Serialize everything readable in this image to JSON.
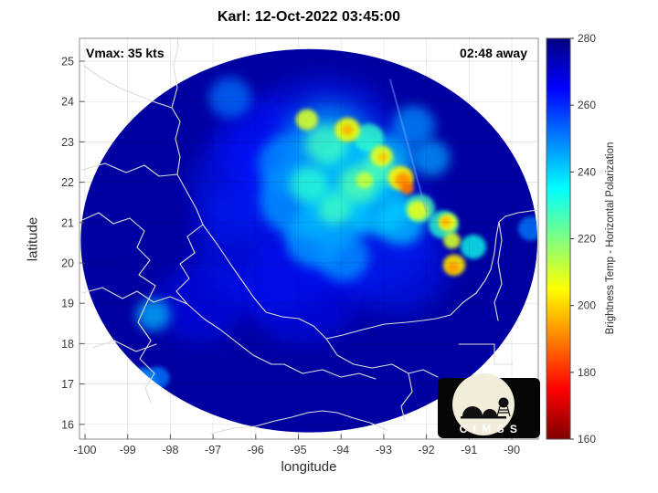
{
  "title": "Karl: 12-Oct-2022 03:45:00",
  "annotations": {
    "vmax": "Vmax: 35 kts",
    "eta": "02:48 away"
  },
  "axes": {
    "x": {
      "label": "longitude",
      "ticks": [
        -100,
        -99,
        -98,
        -97,
        -96,
        -95,
        -94,
        -93,
        -92,
        -91,
        -90
      ]
    },
    "y": {
      "label": "latitude",
      "ticks": [
        25,
        24,
        23,
        22,
        21,
        20,
        19,
        18,
        17,
        16
      ]
    }
  },
  "colorbar": {
    "label": "Brightness Temp - Horizontal Polarization",
    "ticks": [
      280,
      260,
      240,
      220,
      200,
      180,
      160
    ],
    "min": 160,
    "max": 280
  },
  "logo": {
    "text": "C I M S S"
  },
  "chart_data": {
    "type": "heatmap",
    "storm": "Karl",
    "timestamp": "12-Oct-2022 03:45:00",
    "vmax_kts": 35,
    "time_to_overpass": "02:48",
    "title": "Karl: 12-Oct-2022 03:45:00",
    "xlabel": "longitude",
    "ylabel": "latitude",
    "xlim": [
      -100.13,
      -89.38
    ],
    "ylim": [
      15.63,
      25.57
    ],
    "value_label": "Brightness Temp - Horizontal Polarization (K)",
    "value_range": [
      160,
      280
    ],
    "colormap": "jet-reversed",
    "grid": true,
    "swath": {
      "center_lon": -94.75,
      "center_lat": 20.55,
      "radius_lon_deg": 5.35,
      "radius_lat_deg": 4.75,
      "background_temp_K": 276
    },
    "swath_edge_line": [
      [
        -92.85,
        24.55
      ],
      [
        -92.0,
        21.25
      ]
    ],
    "features_lon_lat_radiusdeg_tempK": [
      [
        -94.4,
        22.6,
        2.0,
        261
      ],
      [
        -95.6,
        20.6,
        1.8,
        262
      ],
      [
        -93.4,
        20.9,
        1.6,
        261
      ],
      [
        -96.2,
        21.9,
        1.3,
        262
      ],
      [
        -94.9,
        19.4,
        1.4,
        263
      ],
      [
        -92.7,
        19.9,
        1.2,
        262
      ],
      [
        -95.9,
        23.0,
        1.1,
        263
      ],
      [
        -97.3,
        19.0,
        1.0,
        264
      ],
      [
        -94.3,
        22.85,
        1.1,
        246
      ],
      [
        -93.7,
        22.25,
        0.9,
        241
      ],
      [
        -94.95,
        21.6,
        0.95,
        246
      ],
      [
        -93.2,
        21.5,
        0.8,
        240
      ],
      [
        -94.15,
        21.2,
        0.8,
        242
      ],
      [
        -95.25,
        22.45,
        0.7,
        248
      ],
      [
        -92.9,
        22.6,
        0.6,
        243
      ],
      [
        -94.6,
        20.6,
        0.7,
        245
      ],
      [
        -93.95,
        20.15,
        0.6,
        247
      ],
      [
        -92.6,
        21.0,
        0.55,
        241
      ],
      [
        -96.6,
        24.1,
        0.5,
        252
      ],
      [
        -92.3,
        23.4,
        0.5,
        248
      ],
      [
        -91.9,
        22.6,
        0.45,
        246
      ],
      [
        -89.55,
        20.85,
        0.3,
        250
      ],
      [
        -94.35,
        22.95,
        0.5,
        228
      ],
      [
        -93.6,
        21.95,
        0.45,
        225
      ],
      [
        -94.15,
        21.35,
        0.4,
        228
      ],
      [
        -93.1,
        22.35,
        0.4,
        226
      ],
      [
        -94.75,
        21.95,
        0.45,
        230
      ],
      [
        -91.6,
        20.95,
        0.35,
        230
      ],
      [
        -92.15,
        21.35,
        0.35,
        227
      ],
      [
        -93.35,
        23.1,
        0.35,
        229
      ],
      [
        -90.9,
        20.4,
        0.3,
        233
      ],
      [
        -93.85,
        23.3,
        0.3,
        207
      ],
      [
        -94.8,
        23.55,
        0.26,
        210
      ],
      [
        -93.05,
        22.65,
        0.26,
        208
      ],
      [
        -92.6,
        22.1,
        0.3,
        204
      ],
      [
        -92.2,
        21.3,
        0.24,
        208
      ],
      [
        -91.5,
        21.0,
        0.22,
        206
      ],
      [
        -91.35,
        19.95,
        0.26,
        203
      ],
      [
        -91.4,
        20.55,
        0.2,
        210
      ],
      [
        -93.45,
        22.05,
        0.2,
        212
      ],
      [
        -92.55,
        22.05,
        0.18,
        192
      ],
      [
        -92.45,
        21.85,
        0.15,
        188
      ],
      [
        -93.85,
        23.3,
        0.13,
        196
      ],
      [
        -91.38,
        19.88,
        0.14,
        193
      ],
      [
        -91.55,
        21.02,
        0.12,
        196
      ],
      [
        -93.02,
        22.62,
        0.11,
        198
      ],
      [
        -98.4,
        18.72,
        0.4,
        243
      ],
      [
        -98.65,
        17.05,
        0.35,
        246
      ],
      [
        -98.3,
        17.15,
        0.28,
        250
      ]
    ]
  }
}
